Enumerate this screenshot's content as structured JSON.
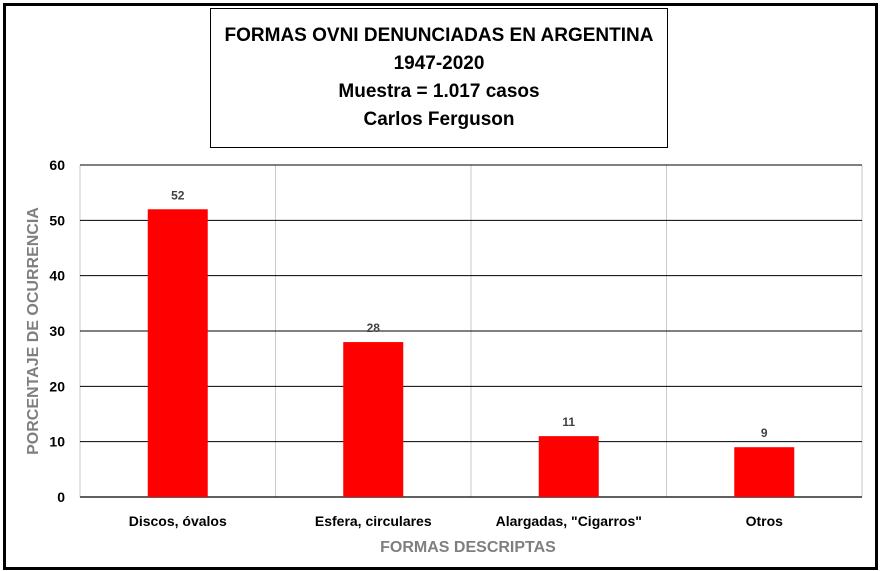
{
  "chart_data": {
    "type": "bar",
    "title_lines": [
      "FORMAS OVNI DENUNCIADAS EN ARGENTINA",
      "1947-2020",
      "Muestra = 1.017 casos",
      "Carlos Ferguson"
    ],
    "xlabel": "FORMAS DESCRIPTAS",
    "ylabel": "PORCENTAJE DE OCURRENCIA",
    "categories": [
      "Discos, óvalos",
      "Esfera, circulares",
      "Alargadas, \"Cigarros\"",
      "Otros"
    ],
    "values": [
      52,
      28,
      11,
      9
    ],
    "data_labels": [
      "52",
      "28",
      "11",
      "9"
    ],
    "ylim": [
      0,
      60
    ],
    "yticks": [
      0,
      10,
      20,
      30,
      40,
      50,
      60
    ],
    "grid": true,
    "legend": "none",
    "colors": {
      "bar": "#ff0000",
      "grid": "#000000",
      "axis_title": "#7f7f7f"
    }
  }
}
